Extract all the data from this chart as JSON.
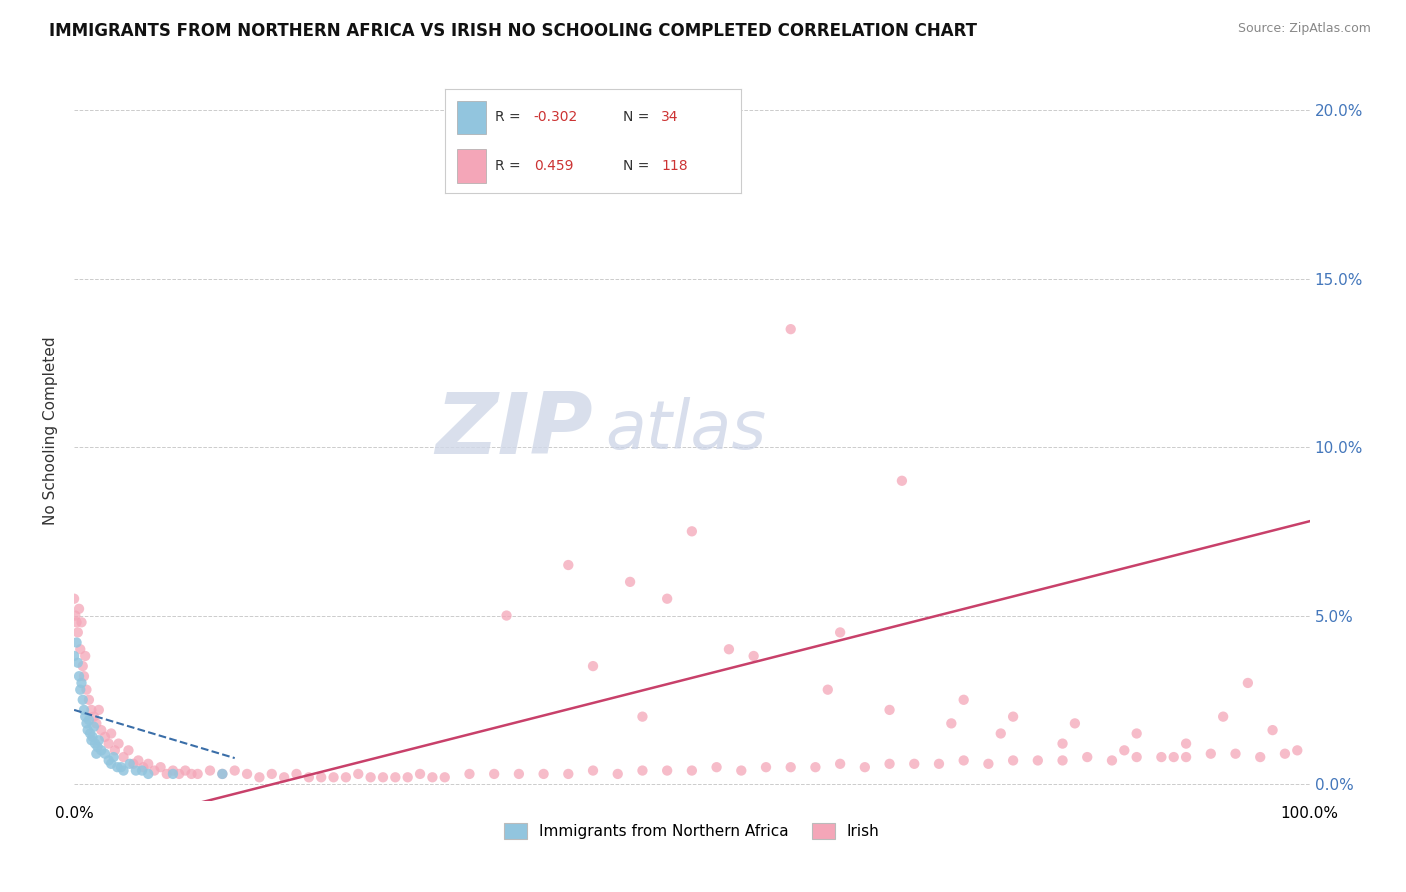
{
  "title": "IMMIGRANTS FROM NORTHERN AFRICA VS IRISH NO SCHOOLING COMPLETED CORRELATION CHART",
  "source": "Source: ZipAtlas.com",
  "ylabel": "No Schooling Completed",
  "ytick_values": [
    0.0,
    0.05,
    0.1,
    0.15,
    0.2
  ],
  "ytick_labels_right": [
    "0.0%",
    "5.0%",
    "10.0%",
    "15.0%",
    "20.0%"
  ],
  "xlim": [
    0.0,
    1.0
  ],
  "ylim": [
    -0.005,
    0.215
  ],
  "blue_color": "#92c5de",
  "pink_color": "#f4a6b8",
  "blue_line_color": "#3a6ea8",
  "pink_line_color": "#c8406a",
  "watermark_zip": "ZIP",
  "watermark_atlas": "atlas",
  "R_blue": -0.302,
  "N_blue": 34,
  "R_pink": 0.459,
  "N_pink": 118,
  "blue_scatter_x": [
    0.0,
    0.002,
    0.003,
    0.004,
    0.005,
    0.006,
    0.007,
    0.008,
    0.009,
    0.01,
    0.011,
    0.012,
    0.013,
    0.014,
    0.015,
    0.016,
    0.017,
    0.018,
    0.019,
    0.02,
    0.022,
    0.025,
    0.028,
    0.03,
    0.032,
    0.035,
    0.038,
    0.04,
    0.045,
    0.05,
    0.055,
    0.06,
    0.08,
    0.12
  ],
  "blue_scatter_y": [
    0.038,
    0.042,
    0.036,
    0.032,
    0.028,
    0.03,
    0.025,
    0.022,
    0.02,
    0.018,
    0.016,
    0.019,
    0.015,
    0.013,
    0.014,
    0.017,
    0.012,
    0.009,
    0.011,
    0.013,
    0.01,
    0.009,
    0.007,
    0.006,
    0.008,
    0.005,
    0.005,
    0.004,
    0.006,
    0.004,
    0.004,
    0.003,
    0.003,
    0.003
  ],
  "pink_scatter_x": [
    0.0,
    0.001,
    0.002,
    0.003,
    0.004,
    0.005,
    0.006,
    0.007,
    0.008,
    0.009,
    0.01,
    0.012,
    0.014,
    0.016,
    0.018,
    0.02,
    0.022,
    0.025,
    0.028,
    0.03,
    0.033,
    0.036,
    0.04,
    0.044,
    0.048,
    0.052,
    0.056,
    0.06,
    0.065,
    0.07,
    0.075,
    0.08,
    0.085,
    0.09,
    0.095,
    0.1,
    0.11,
    0.12,
    0.13,
    0.14,
    0.15,
    0.16,
    0.17,
    0.18,
    0.19,
    0.2,
    0.21,
    0.22,
    0.23,
    0.24,
    0.25,
    0.26,
    0.27,
    0.28,
    0.29,
    0.3,
    0.32,
    0.34,
    0.36,
    0.38,
    0.4,
    0.42,
    0.44,
    0.46,
    0.48,
    0.5,
    0.52,
    0.54,
    0.56,
    0.58,
    0.6,
    0.62,
    0.64,
    0.66,
    0.68,
    0.7,
    0.72,
    0.74,
    0.76,
    0.78,
    0.8,
    0.82,
    0.84,
    0.86,
    0.88,
    0.9,
    0.92,
    0.94,
    0.96,
    0.98,
    0.35,
    0.42,
    0.48,
    0.53,
    0.58,
    0.62,
    0.67,
    0.72,
    0.76,
    0.81,
    0.86,
    0.9,
    0.95,
    0.99,
    0.45,
    0.5,
    0.55,
    0.61,
    0.66,
    0.71,
    0.75,
    0.8,
    0.85,
    0.89,
    0.93,
    0.97,
    0.4,
    0.46
  ],
  "pink_scatter_y": [
    0.055,
    0.05,
    0.048,
    0.045,
    0.052,
    0.04,
    0.048,
    0.035,
    0.032,
    0.038,
    0.028,
    0.025,
    0.022,
    0.02,
    0.018,
    0.022,
    0.016,
    0.014,
    0.012,
    0.015,
    0.01,
    0.012,
    0.008,
    0.01,
    0.006,
    0.007,
    0.005,
    0.006,
    0.004,
    0.005,
    0.003,
    0.004,
    0.003,
    0.004,
    0.003,
    0.003,
    0.004,
    0.003,
    0.004,
    0.003,
    0.002,
    0.003,
    0.002,
    0.003,
    0.002,
    0.002,
    0.002,
    0.002,
    0.003,
    0.002,
    0.002,
    0.002,
    0.002,
    0.003,
    0.002,
    0.002,
    0.003,
    0.003,
    0.003,
    0.003,
    0.003,
    0.004,
    0.003,
    0.004,
    0.004,
    0.004,
    0.005,
    0.004,
    0.005,
    0.005,
    0.005,
    0.006,
    0.005,
    0.006,
    0.006,
    0.006,
    0.007,
    0.006,
    0.007,
    0.007,
    0.007,
    0.008,
    0.007,
    0.008,
    0.008,
    0.008,
    0.009,
    0.009,
    0.008,
    0.009,
    0.05,
    0.035,
    0.055,
    0.04,
    0.135,
    0.045,
    0.09,
    0.025,
    0.02,
    0.018,
    0.015,
    0.012,
    0.03,
    0.01,
    0.06,
    0.075,
    0.038,
    0.028,
    0.022,
    0.018,
    0.015,
    0.012,
    0.01,
    0.008,
    0.02,
    0.016,
    0.065,
    0.02
  ]
}
